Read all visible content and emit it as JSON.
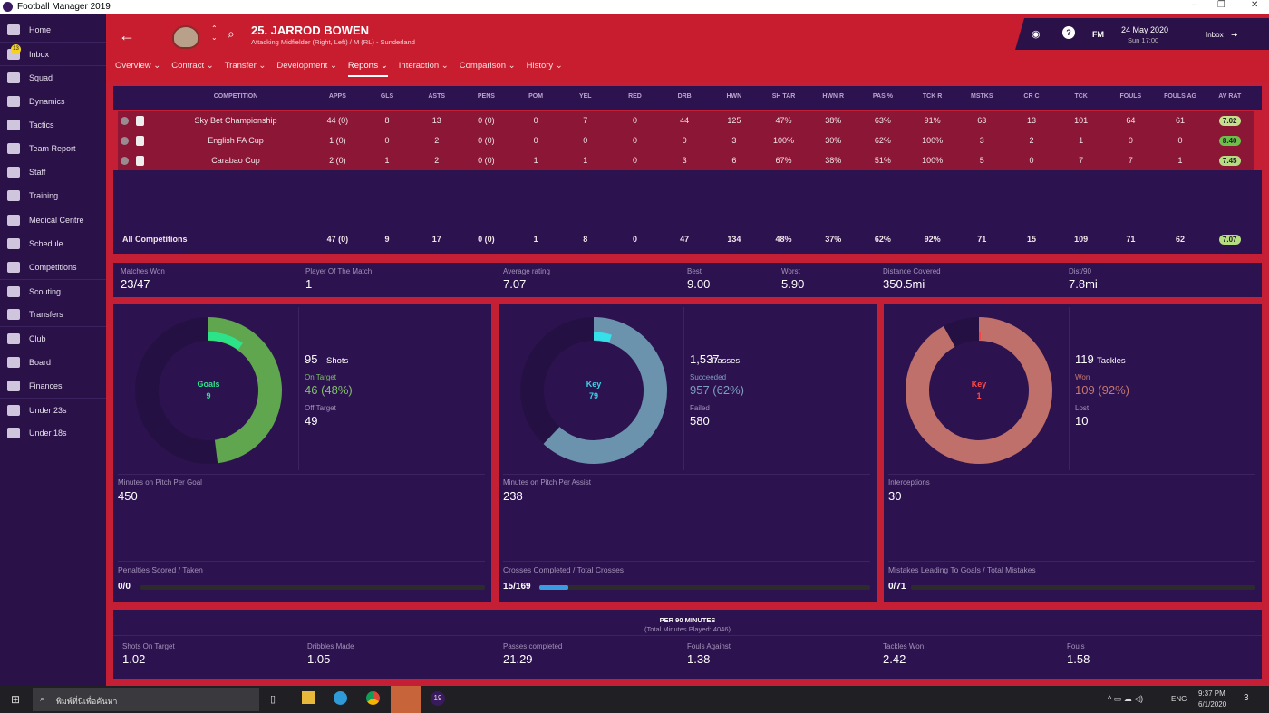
{
  "window": {
    "title": "Football Manager 2019",
    "controls": [
      "–",
      "❐",
      "✕"
    ]
  },
  "sidebar": {
    "items": [
      {
        "label": "Home",
        "icon": "home-icon"
      },
      {
        "label": "Inbox",
        "icon": "inbox-icon",
        "badge": "13"
      },
      {
        "label": "Squad",
        "icon": "squad-icon"
      },
      {
        "label": "Dynamics",
        "icon": "dynamics-icon"
      },
      {
        "label": "Tactics",
        "icon": "tactics-icon"
      },
      {
        "label": "Team Report",
        "icon": "report-icon"
      },
      {
        "label": "Staff",
        "icon": "staff-icon"
      },
      {
        "label": "Training",
        "icon": "training-icon"
      },
      {
        "label": "Medical Centre",
        "icon": "medical-icon"
      },
      {
        "label": "Schedule",
        "icon": "calendar-icon"
      },
      {
        "label": "Competitions",
        "icon": "trophy-icon"
      },
      {
        "label": "Scouting",
        "icon": "search-icon"
      },
      {
        "label": "Transfers",
        "icon": "transfer-icon"
      },
      {
        "label": "Club",
        "icon": "shield-icon"
      },
      {
        "label": "Board",
        "icon": "briefcase-icon"
      },
      {
        "label": "Finances",
        "icon": "money-icon"
      },
      {
        "label": "Under 23s",
        "icon": "u23-icon"
      },
      {
        "label": "Under 18s",
        "icon": "u18-icon"
      }
    ]
  },
  "header": {
    "player_name": "25. JARROD BOWEN",
    "player_sub": "Attacking Midfielder (Right, Left) / M (RL) - Sunderland",
    "tabs": [
      "Overview ⌄",
      "Contract ⌄",
      "Transfer ⌄",
      "Development ⌄",
      "Reports ⌄",
      "Interaction ⌄",
      "Comparison ⌄",
      "History ⌄"
    ],
    "active_tab": 4,
    "logo": "FM",
    "date": "24 May 2020",
    "time": "Sun 17:00",
    "inbox": "Inbox"
  },
  "table": {
    "columns": [
      "COMPETITION",
      "APPS",
      "GLS",
      "ASTS",
      "PENS",
      "POM",
      "YEL",
      "RED",
      "DRB",
      "HWN",
      "SH TAR",
      "HWN R",
      "PAS %",
      "TCK R",
      "MSTKS",
      "CR C",
      "TCK",
      "FOULS",
      "FOULS AG",
      "AV RAT"
    ],
    "rows": [
      [
        "Sky Bet Championship",
        "44 (0)",
        "8",
        "13",
        "0 (0)",
        "0",
        "7",
        "0",
        "44",
        "125",
        "47%",
        "38%",
        "63%",
        "91%",
        "63",
        "13",
        "101",
        "64",
        "61",
        "7.02"
      ],
      [
        "English FA Cup",
        "1 (0)",
        "0",
        "2",
        "0 (0)",
        "0",
        "0",
        "0",
        "0",
        "3",
        "100%",
        "30%",
        "62%",
        "100%",
        "3",
        "2",
        "1",
        "0",
        "0",
        "8.40"
      ],
      [
        "Carabao Cup",
        "2 (0)",
        "1",
        "2",
        "0 (0)",
        "1",
        "1",
        "0",
        "3",
        "6",
        "67%",
        "38%",
        "51%",
        "100%",
        "5",
        "0",
        "7",
        "7",
        "1",
        "7.45"
      ]
    ],
    "rating_colors": [
      "#c5e08a",
      "#6cc04a",
      "#b5dc80"
    ],
    "total": [
      "All Competitions",
      "47 (0)",
      "9",
      "17",
      "0 (0)",
      "1",
      "8",
      "0",
      "47",
      "134",
      "48%",
      "37%",
      "62%",
      "92%",
      "71",
      "15",
      "109",
      "71",
      "62",
      "7.07"
    ]
  },
  "summary": [
    {
      "label": "Matches Won",
      "value": "23/47"
    },
    {
      "label": "Player Of The Match",
      "value": "1"
    },
    {
      "label": "Average rating",
      "value": "7.07"
    },
    {
      "label": "Best",
      "value": "9.00"
    },
    {
      "label": "Worst",
      "value": "5.90"
    },
    {
      "label": "Distance Covered",
      "value": "350.5mi"
    },
    {
      "label": "Dist/90",
      "value": "7.8mi"
    }
  ],
  "panels": [
    {
      "center_label": "Goals",
      "center_value": "9",
      "total": "95",
      "total_label": "Shots",
      "a_label": "On Target",
      "a_value": "46 (48%)",
      "b_label": "Off Target",
      "b_value": "49",
      "mid_label": "Minutes on Pitch Per Goal",
      "mid_value": "450",
      "bottom_label": "Penalties Scored / Taken",
      "bottom_value": "0/0",
      "arc_fraction": 0.48,
      "inner_fraction": 0.1,
      "fill_fraction": 0,
      "color": "#5fa64e",
      "inner_color": "#2de38a",
      "center_color": "#2de38a",
      "a_color": "#7fbf6a",
      "bar_color": "#4aa3e0"
    },
    {
      "center_label": "Key",
      "center_value": "79",
      "total": "1,537",
      "total_label": "Passes",
      "a_label": "Succeeded",
      "a_value": "957 (62%)",
      "b_label": "Failed",
      "b_value": "580",
      "mid_label": "Minutes on Pitch Per Assist",
      "mid_value": "238",
      "bottom_label": "Crosses Completed / Total Crosses",
      "bottom_value": "15/169",
      "arc_fraction": 0.62,
      "inner_fraction": 0.05,
      "fill_fraction": 0.089,
      "color": "#6c93ad",
      "inner_color": "#36e0e8",
      "center_color": "#36d8e8",
      "a_color": "#7d9fc0",
      "bar_color": "#3a9be0"
    },
    {
      "center_label": "Key",
      "center_value": "1",
      "total": "119",
      "total_label": "Tackles",
      "a_label": "Won",
      "a_value": "109 (92%)",
      "b_label": "Lost",
      "b_value": "10",
      "mid_label": "Interceptions",
      "mid_value": "30",
      "bottom_label": "Mistakes Leading To Goals / Total Mistakes",
      "bottom_value": "0/71",
      "arc_fraction": 0.92,
      "inner_fraction": 0.005,
      "fill_fraction": 0,
      "color": "#c0706a",
      "inner_color": "#ff4040",
      "center_color": "#ff4a4a",
      "a_color": "#c4786e",
      "bar_color": "#4aa3e0"
    }
  ],
  "per90": {
    "title": "PER 90 MINUTES",
    "subtitle": "(Total Minutes Played: 4046)",
    "stats": [
      {
        "label": "Shots On Target",
        "value": "1.02"
      },
      {
        "label": "Dribbles Made",
        "value": "1.05"
      },
      {
        "label": "Passes completed",
        "value": "21.29"
      },
      {
        "label": "Fouls Against",
        "value": "1.38"
      },
      {
        "label": "Tackles Won",
        "value": "2.42"
      },
      {
        "label": "Fouls",
        "value": "1.58"
      }
    ]
  },
  "taskbar": {
    "search_placeholder": "พิมพ์ที่นี่เพื่อค้นหา",
    "lang": "ENG",
    "time": "9:37 PM",
    "date": "6/1/2020",
    "notif": "3",
    "fm_label": "19"
  }
}
